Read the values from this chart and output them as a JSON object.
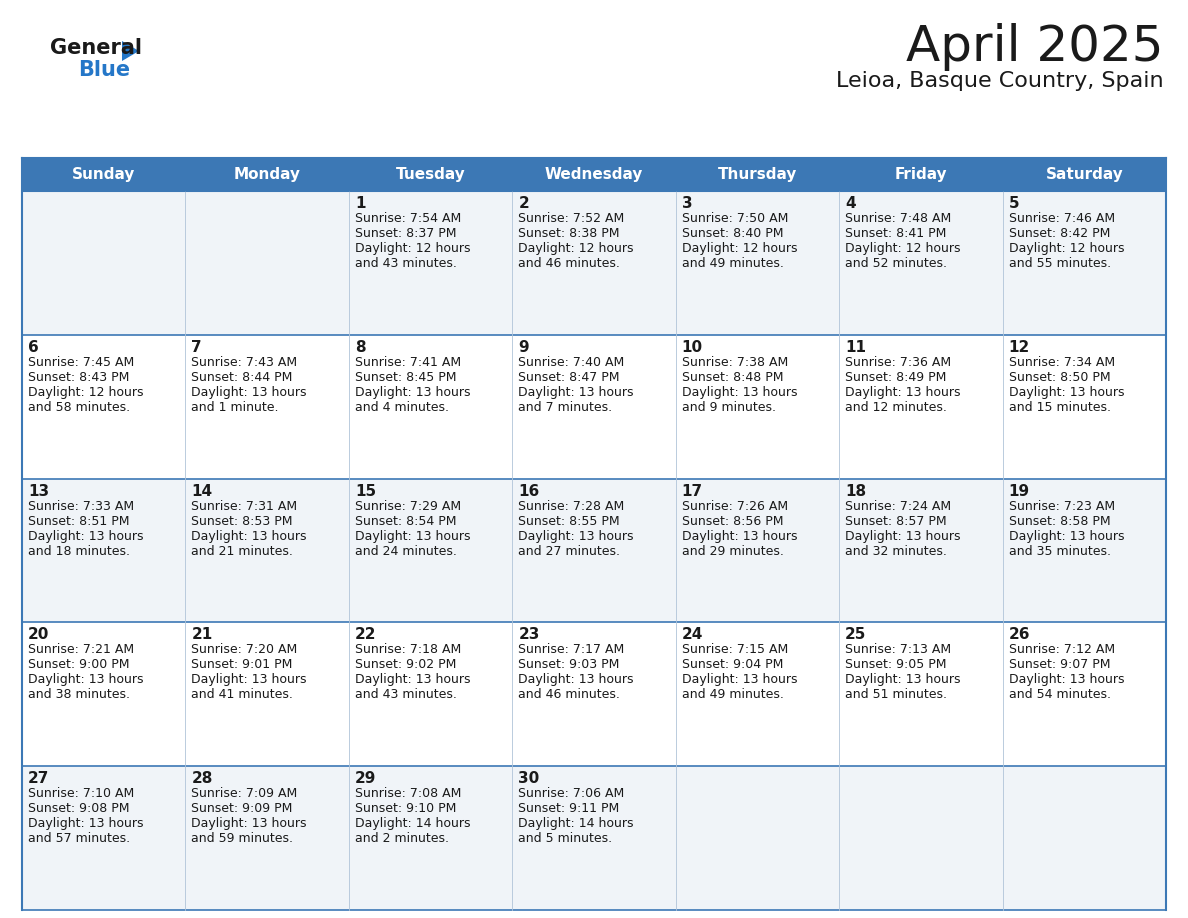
{
  "title": "April 2025",
  "subtitle": "Leioa, Basque Country, Spain",
  "header_bg_color": "#3c78b5",
  "header_text_color": "#ffffff",
  "row_bg_colors": [
    "#f0f4f8",
    "#ffffff",
    "#f0f4f8",
    "#ffffff",
    "#f0f4f8"
  ],
  "border_color": "#3c78b5",
  "thin_border_color": "#b0c4d8",
  "day_names": [
    "Sunday",
    "Monday",
    "Tuesday",
    "Wednesday",
    "Thursday",
    "Friday",
    "Saturday"
  ],
  "days": [
    {
      "day": 1,
      "col": 2,
      "row": 0,
      "sunrise": "7:54 AM",
      "sunset": "8:37 PM",
      "daylight": "12 hours",
      "daylight2": "and 43 minutes."
    },
    {
      "day": 2,
      "col": 3,
      "row": 0,
      "sunrise": "7:52 AM",
      "sunset": "8:38 PM",
      "daylight": "12 hours",
      "daylight2": "and 46 minutes."
    },
    {
      "day": 3,
      "col": 4,
      "row": 0,
      "sunrise": "7:50 AM",
      "sunset": "8:40 PM",
      "daylight": "12 hours",
      "daylight2": "and 49 minutes."
    },
    {
      "day": 4,
      "col": 5,
      "row": 0,
      "sunrise": "7:48 AM",
      "sunset": "8:41 PM",
      "daylight": "12 hours",
      "daylight2": "and 52 minutes."
    },
    {
      "day": 5,
      "col": 6,
      "row": 0,
      "sunrise": "7:46 AM",
      "sunset": "8:42 PM",
      "daylight": "12 hours",
      "daylight2": "and 55 minutes."
    },
    {
      "day": 6,
      "col": 0,
      "row": 1,
      "sunrise": "7:45 AM",
      "sunset": "8:43 PM",
      "daylight": "12 hours",
      "daylight2": "and 58 minutes."
    },
    {
      "day": 7,
      "col": 1,
      "row": 1,
      "sunrise": "7:43 AM",
      "sunset": "8:44 PM",
      "daylight": "13 hours",
      "daylight2": "and 1 minute."
    },
    {
      "day": 8,
      "col": 2,
      "row": 1,
      "sunrise": "7:41 AM",
      "sunset": "8:45 PM",
      "daylight": "13 hours",
      "daylight2": "and 4 minutes."
    },
    {
      "day": 9,
      "col": 3,
      "row": 1,
      "sunrise": "7:40 AM",
      "sunset": "8:47 PM",
      "daylight": "13 hours",
      "daylight2": "and 7 minutes."
    },
    {
      "day": 10,
      "col": 4,
      "row": 1,
      "sunrise": "7:38 AM",
      "sunset": "8:48 PM",
      "daylight": "13 hours",
      "daylight2": "and 9 minutes."
    },
    {
      "day": 11,
      "col": 5,
      "row": 1,
      "sunrise": "7:36 AM",
      "sunset": "8:49 PM",
      "daylight": "13 hours",
      "daylight2": "and 12 minutes."
    },
    {
      "day": 12,
      "col": 6,
      "row": 1,
      "sunrise": "7:34 AM",
      "sunset": "8:50 PM",
      "daylight": "13 hours",
      "daylight2": "and 15 minutes."
    },
    {
      "day": 13,
      "col": 0,
      "row": 2,
      "sunrise": "7:33 AM",
      "sunset": "8:51 PM",
      "daylight": "13 hours",
      "daylight2": "and 18 minutes."
    },
    {
      "day": 14,
      "col": 1,
      "row": 2,
      "sunrise": "7:31 AM",
      "sunset": "8:53 PM",
      "daylight": "13 hours",
      "daylight2": "and 21 minutes."
    },
    {
      "day": 15,
      "col": 2,
      "row": 2,
      "sunrise": "7:29 AM",
      "sunset": "8:54 PM",
      "daylight": "13 hours",
      "daylight2": "and 24 minutes."
    },
    {
      "day": 16,
      "col": 3,
      "row": 2,
      "sunrise": "7:28 AM",
      "sunset": "8:55 PM",
      "daylight": "13 hours",
      "daylight2": "and 27 minutes."
    },
    {
      "day": 17,
      "col": 4,
      "row": 2,
      "sunrise": "7:26 AM",
      "sunset": "8:56 PM",
      "daylight": "13 hours",
      "daylight2": "and 29 minutes."
    },
    {
      "day": 18,
      "col": 5,
      "row": 2,
      "sunrise": "7:24 AM",
      "sunset": "8:57 PM",
      "daylight": "13 hours",
      "daylight2": "and 32 minutes."
    },
    {
      "day": 19,
      "col": 6,
      "row": 2,
      "sunrise": "7:23 AM",
      "sunset": "8:58 PM",
      "daylight": "13 hours",
      "daylight2": "and 35 minutes."
    },
    {
      "day": 20,
      "col": 0,
      "row": 3,
      "sunrise": "7:21 AM",
      "sunset": "9:00 PM",
      "daylight": "13 hours",
      "daylight2": "and 38 minutes."
    },
    {
      "day": 21,
      "col": 1,
      "row": 3,
      "sunrise": "7:20 AM",
      "sunset": "9:01 PM",
      "daylight": "13 hours",
      "daylight2": "and 41 minutes."
    },
    {
      "day": 22,
      "col": 2,
      "row": 3,
      "sunrise": "7:18 AM",
      "sunset": "9:02 PM",
      "daylight": "13 hours",
      "daylight2": "and 43 minutes."
    },
    {
      "day": 23,
      "col": 3,
      "row": 3,
      "sunrise": "7:17 AM",
      "sunset": "9:03 PM",
      "daylight": "13 hours",
      "daylight2": "and 46 minutes."
    },
    {
      "day": 24,
      "col": 4,
      "row": 3,
      "sunrise": "7:15 AM",
      "sunset": "9:04 PM",
      "daylight": "13 hours",
      "daylight2": "and 49 minutes."
    },
    {
      "day": 25,
      "col": 5,
      "row": 3,
      "sunrise": "7:13 AM",
      "sunset": "9:05 PM",
      "daylight": "13 hours",
      "daylight2": "and 51 minutes."
    },
    {
      "day": 26,
      "col": 6,
      "row": 3,
      "sunrise": "7:12 AM",
      "sunset": "9:07 PM",
      "daylight": "13 hours",
      "daylight2": "and 54 minutes."
    },
    {
      "day": 27,
      "col": 0,
      "row": 4,
      "sunrise": "7:10 AM",
      "sunset": "9:08 PM",
      "daylight": "13 hours",
      "daylight2": "and 57 minutes."
    },
    {
      "day": 28,
      "col": 1,
      "row": 4,
      "sunrise": "7:09 AM",
      "sunset": "9:09 PM",
      "daylight": "13 hours",
      "daylight2": "and 59 minutes."
    },
    {
      "day": 29,
      "col": 2,
      "row": 4,
      "sunrise": "7:08 AM",
      "sunset": "9:10 PM",
      "daylight": "14 hours",
      "daylight2": "and 2 minutes."
    },
    {
      "day": 30,
      "col": 3,
      "row": 4,
      "sunrise": "7:06 AM",
      "sunset": "9:11 PM",
      "daylight": "14 hours",
      "daylight2": "and 5 minutes."
    }
  ],
  "logo_color_general": "#1a1a1a",
  "logo_color_blue": "#2577c8",
  "logo_triangle_color": "#2577c8",
  "title_fontsize": 36,
  "subtitle_fontsize": 16,
  "header_fontsize": 11,
  "day_num_fontsize": 11,
  "cell_text_fontsize": 9
}
